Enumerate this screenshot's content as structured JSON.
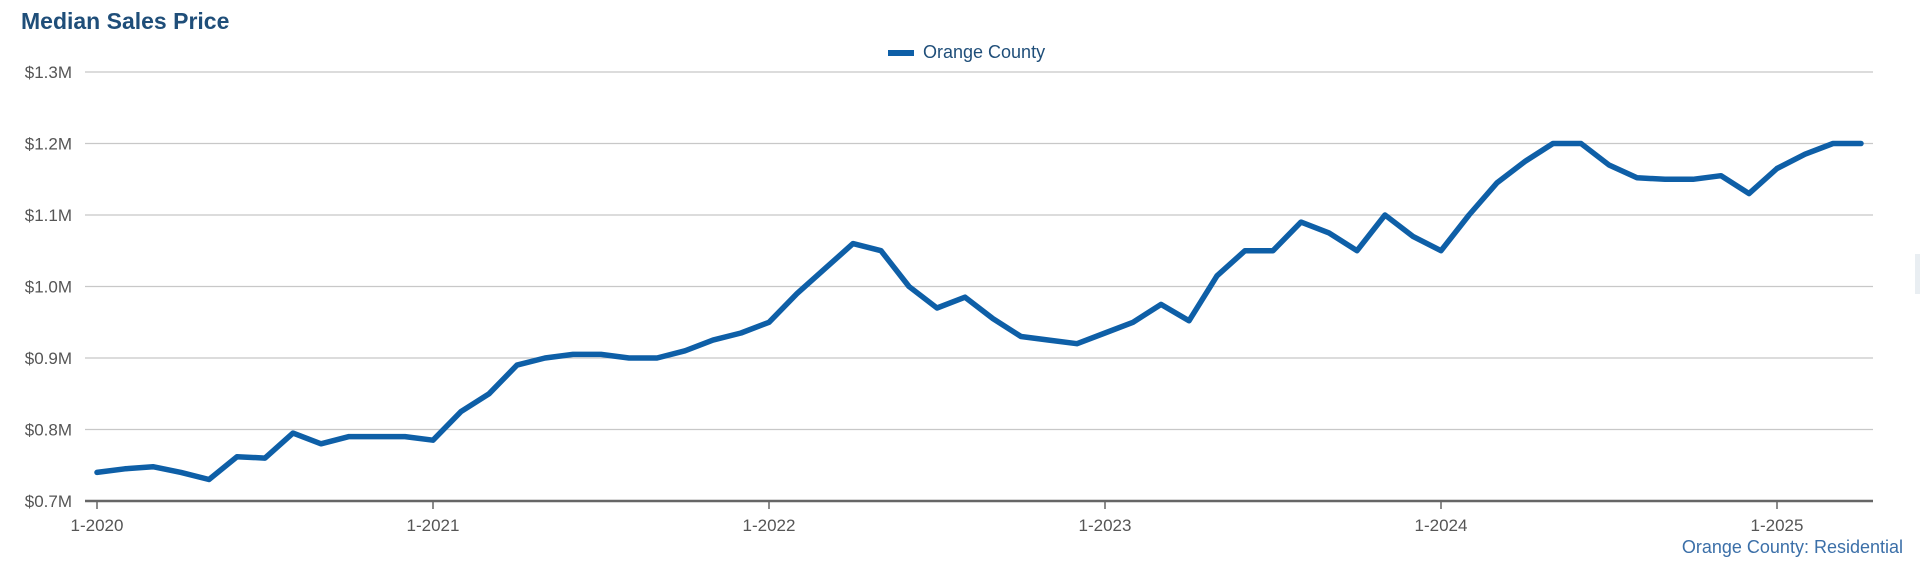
{
  "colors": {
    "series": "#0e5fa7",
    "title": "#1f4e79",
    "grid": "#c8c8c8",
    "axis": "#666666"
  },
  "chart_data": {
    "type": "line",
    "title": "Median Sales Price",
    "footnote": "Orange County: Residential",
    "legend_position": "top-center",
    "grid": true,
    "ylim": [
      0.7,
      1.3
    ],
    "y_ticks": [
      {
        "value": 1.3,
        "label": "$1.3M"
      },
      {
        "value": 1.2,
        "label": "$1.2M"
      },
      {
        "value": 1.1,
        "label": "$1.1M"
      },
      {
        "value": 1.0,
        "label": "$1.0M"
      },
      {
        "value": 0.9,
        "label": "$0.9M"
      },
      {
        "value": 0.8,
        "label": "$0.8M"
      },
      {
        "value": 0.7,
        "label": "$0.7M"
      }
    ],
    "x_ticks": [
      {
        "value": "2020-01",
        "label": "1-2020"
      },
      {
        "value": "2021-01",
        "label": "1-2021"
      },
      {
        "value": "2022-01",
        "label": "1-2022"
      },
      {
        "value": "2023-01",
        "label": "1-2023"
      },
      {
        "value": "2024-01",
        "label": "1-2024"
      },
      {
        "value": "2025-01",
        "label": "1-2025"
      }
    ],
    "x": [
      "2020-01",
      "2020-02",
      "2020-03",
      "2020-04",
      "2020-05",
      "2020-06",
      "2020-07",
      "2020-08",
      "2020-09",
      "2020-10",
      "2020-11",
      "2020-12",
      "2021-01",
      "2021-02",
      "2021-03",
      "2021-04",
      "2021-05",
      "2021-06",
      "2021-07",
      "2021-08",
      "2021-09",
      "2021-10",
      "2021-11",
      "2021-12",
      "2022-01",
      "2022-02",
      "2022-03",
      "2022-04",
      "2022-05",
      "2022-06",
      "2022-07",
      "2022-08",
      "2022-09",
      "2022-10",
      "2022-11",
      "2022-12",
      "2023-01",
      "2023-02",
      "2023-03",
      "2023-04",
      "2023-05",
      "2023-06",
      "2023-07",
      "2023-08",
      "2023-09",
      "2023-10",
      "2023-11",
      "2023-12",
      "2024-01",
      "2024-02",
      "2024-03",
      "2024-04",
      "2024-05",
      "2024-06",
      "2024-07",
      "2024-08",
      "2024-09",
      "2024-10",
      "2024-11",
      "2024-12",
      "2025-01",
      "2025-02",
      "2025-03",
      "2025-04"
    ],
    "series": [
      {
        "name": "Orange County",
        "values": [
          0.74,
          0.745,
          0.748,
          0.74,
          0.73,
          0.762,
          0.76,
          0.795,
          0.78,
          0.79,
          0.79,
          0.79,
          0.785,
          0.825,
          0.85,
          0.89,
          0.9,
          0.905,
          0.905,
          0.9,
          0.9,
          0.91,
          0.925,
          0.935,
          0.95,
          0.99,
          1.025,
          1.06,
          1.05,
          1.0,
          0.97,
          0.985,
          0.955,
          0.93,
          0.925,
          0.92,
          0.935,
          0.95,
          0.975,
          0.952,
          1.015,
          1.05,
          1.05,
          1.09,
          1.075,
          1.05,
          1.1,
          1.07,
          1.05,
          1.1,
          1.145,
          1.175,
          1.2,
          1.2,
          1.17,
          1.152,
          1.15,
          1.15,
          1.155,
          1.13,
          1.165,
          1.185,
          1.2,
          1.2
        ]
      }
    ]
  }
}
